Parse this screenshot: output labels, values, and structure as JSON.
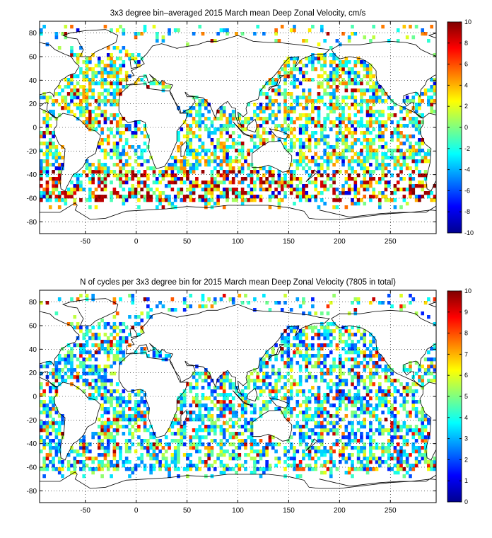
{
  "chart_data": [
    {
      "type": "heatmap",
      "title": "3x3 degree bin–averaged 2015 March mean Deep Zonal Velocity, cm/s",
      "xlim": [
        -95,
        295
      ],
      "ylim": [
        -90,
        90
      ],
      "xticks": [
        -50,
        0,
        50,
        100,
        150,
        200,
        250
      ],
      "yticks": [
        -80,
        -60,
        -40,
        -20,
        0,
        20,
        40,
        60,
        80
      ],
      "grid": "dotted",
      "bin_deg": 3,
      "colorbar": {
        "min": -10,
        "max": 10,
        "ticks": [
          -10,
          -8,
          -6,
          -4,
          -2,
          0,
          2,
          4,
          6,
          8,
          10
        ],
        "colormap": "jet"
      },
      "values_note": "",
      "cells": []
    },
    {
      "type": "heatmap",
      "title": "N of cycles per 3x3 degree bin for 2015 March mean Deep Zonal Velocity (7805 in total)",
      "xlim": [
        -95,
        295
      ],
      "ylim": [
        -90,
        90
      ],
      "xticks": [
        -50,
        0,
        50,
        100,
        150,
        200,
        250
      ],
      "yticks": [
        -80,
        -60,
        -40,
        -20,
        0,
        20,
        40,
        60,
        80
      ],
      "grid": "dotted",
      "bin_deg": 3,
      "colorbar": {
        "min": 0,
        "max": 10,
        "ticks": [
          0,
          1,
          2,
          3,
          4,
          5,
          6,
          7,
          8,
          9,
          10
        ],
        "colormap": "jet"
      },
      "cells": []
    }
  ]
}
